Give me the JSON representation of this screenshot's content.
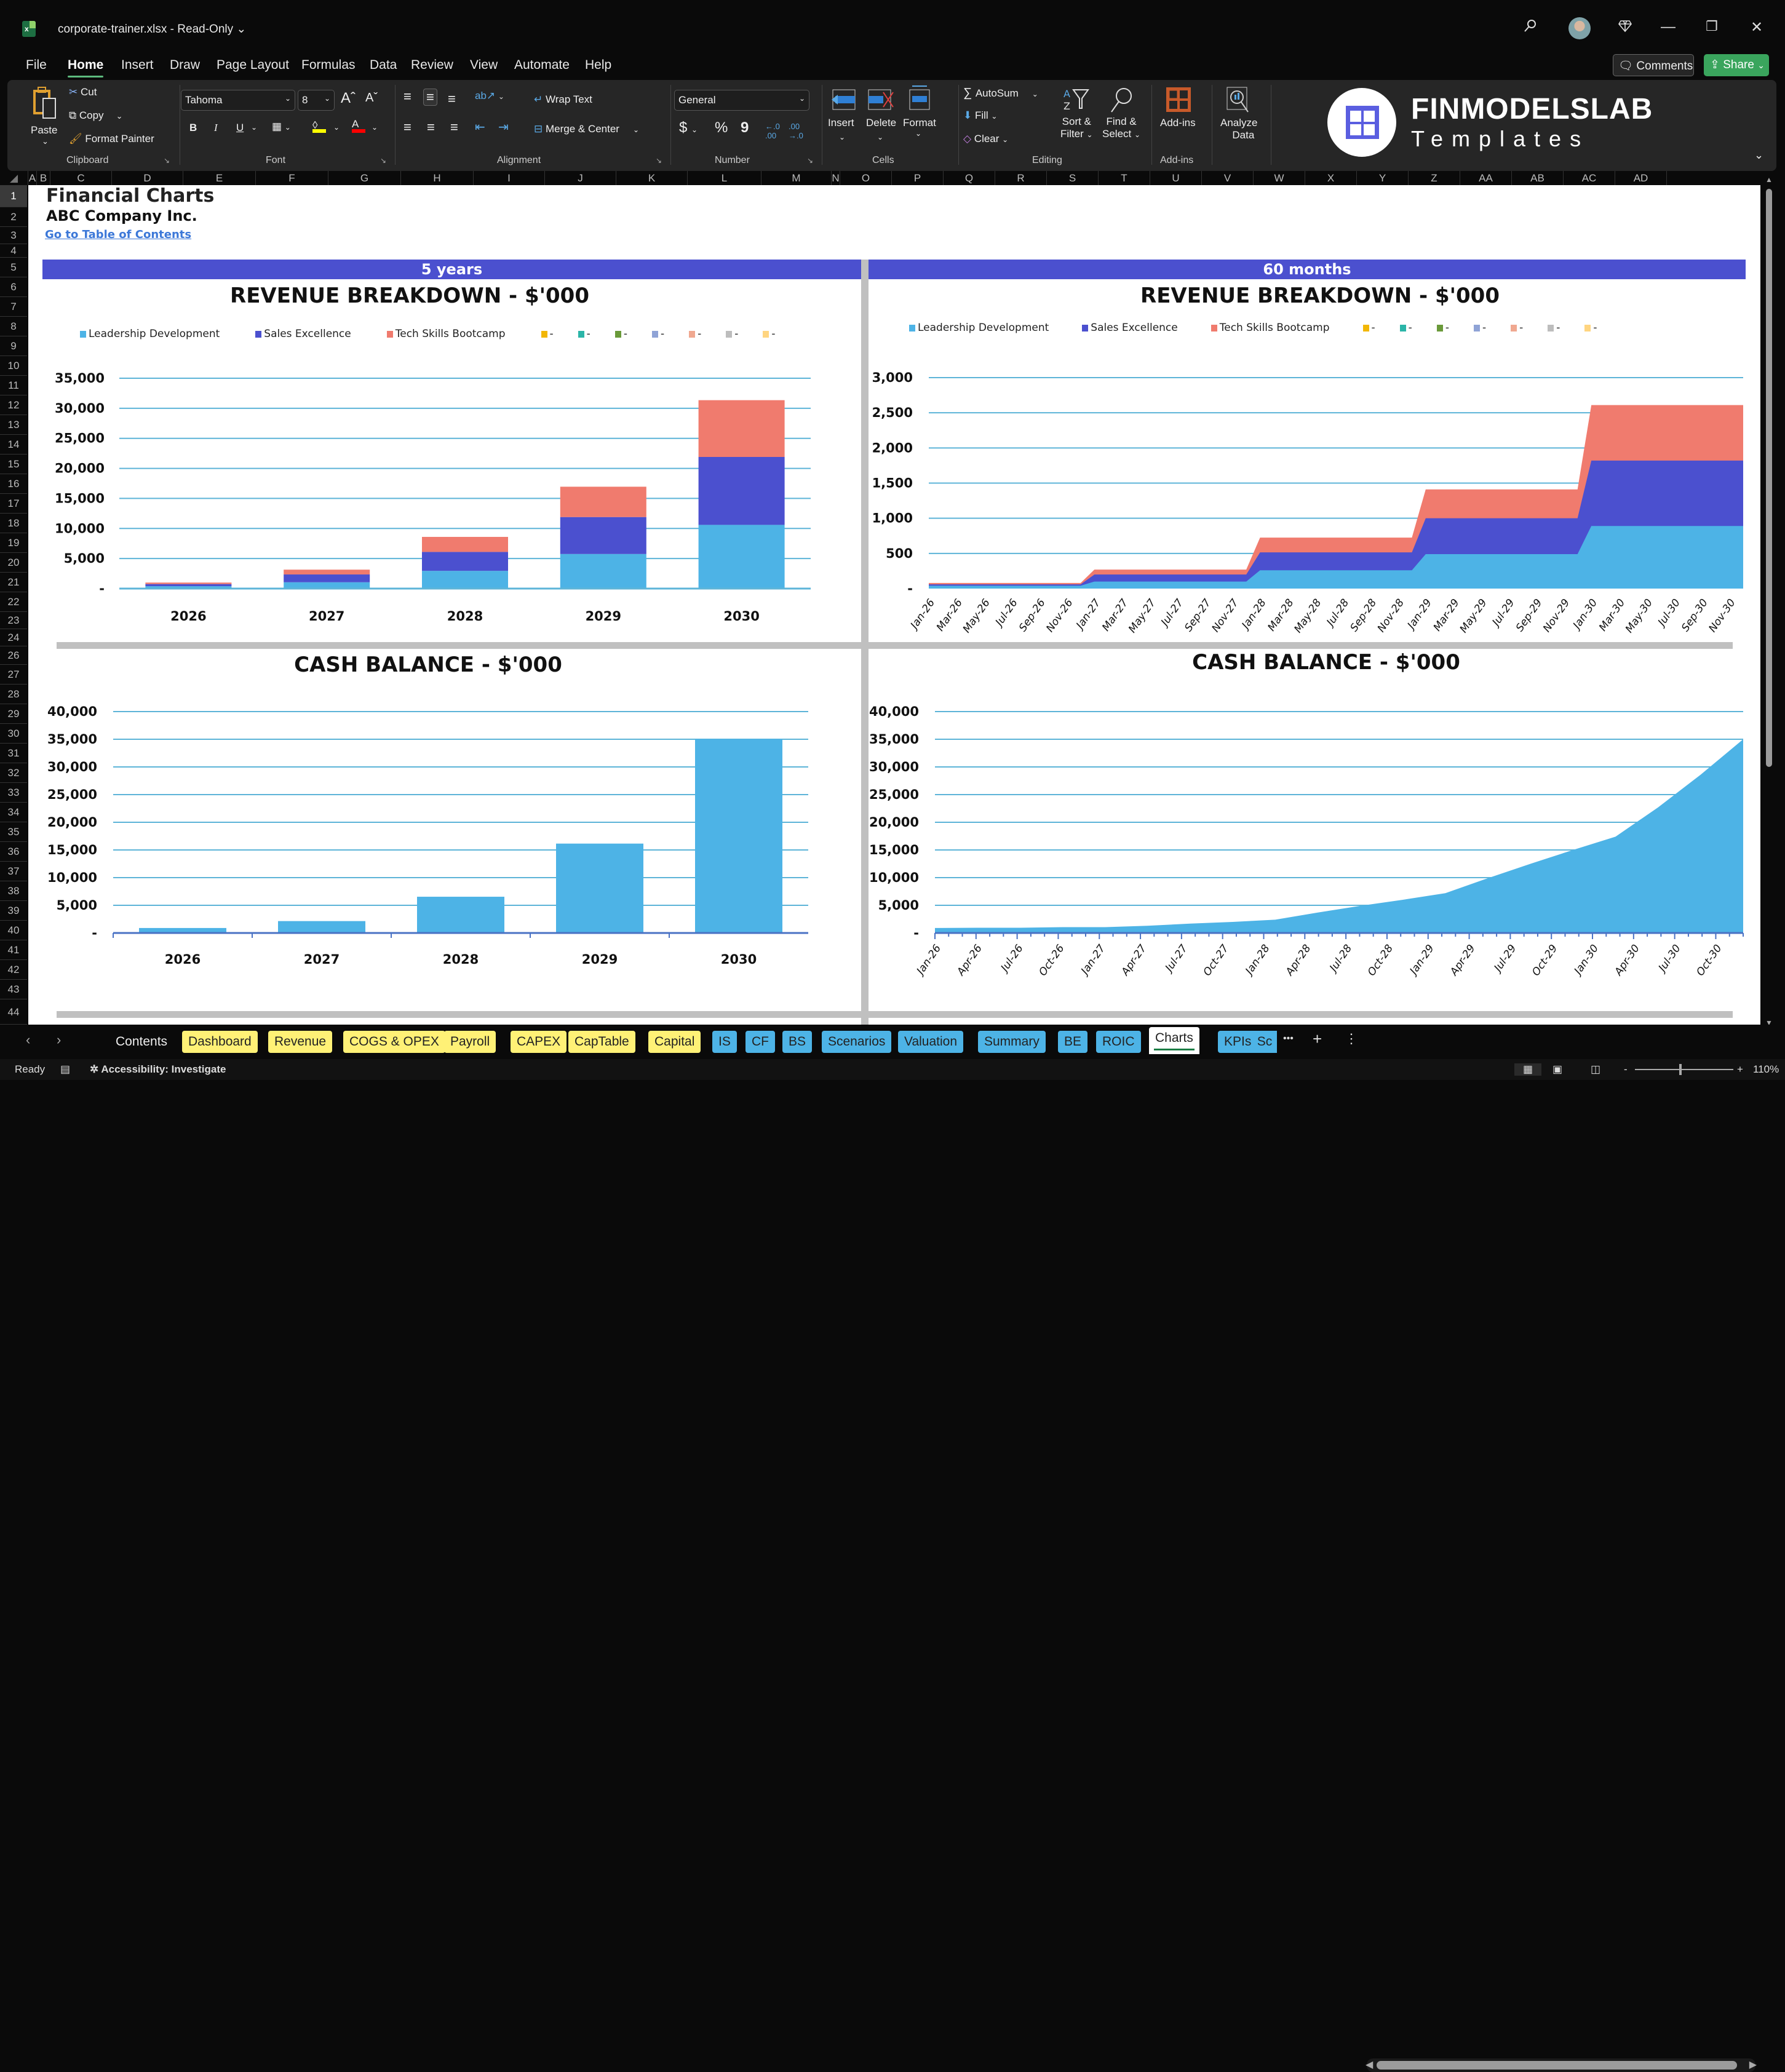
{
  "window": {
    "doc_title": "corporate-trainer.xlsx  -  Read-Only",
    "search_icon": "search-icon",
    "premium_icon": "diamond-icon",
    "minimize": "—",
    "restore": "❐",
    "close": "✕"
  },
  "menu": {
    "items": [
      "File",
      "Home",
      "Insert",
      "Draw",
      "Page Layout",
      "Formulas",
      "Data",
      "Review",
      "View",
      "Automate",
      "Help"
    ],
    "active": "Home",
    "comments_label": "Comments",
    "share_label": "Share"
  },
  "ribbon": {
    "clipboard": {
      "paste": "Paste",
      "cut": "Cut",
      "copy": "Copy",
      "format_painter": "Format Painter",
      "label": "Clipboard"
    },
    "font": {
      "name": "Tahoma",
      "size": "8",
      "bold": "B",
      "italic": "I",
      "underline": "U",
      "label": "Font",
      "fill_color": "#ffff00",
      "font_color": "#ff0000"
    },
    "alignment": {
      "wrap_text": "Wrap Text",
      "merge_center": "Merge & Center",
      "label": "Alignment"
    },
    "number": {
      "format": "General",
      "currency": "$",
      "percent": "%",
      "comma": "9",
      "label": "Number"
    },
    "cells": {
      "insert": "Insert",
      "delete": "Delete",
      "format": "Format",
      "label": "Cells"
    },
    "editing": {
      "autosum": "AutoSum",
      "fill": "Fill",
      "clear": "Clear",
      "sort_filter_1": "Sort &",
      "sort_filter_2": "Filter",
      "find_select_1": "Find &",
      "find_select_2": "Select",
      "label": "Editing"
    },
    "addins": {
      "addins": "Add-ins",
      "label": "Add-ins"
    },
    "analyze": {
      "line1": "Analyze",
      "line2": "Data"
    },
    "logo": {
      "name": "FINMODELSLAB",
      "sub": "Templates"
    }
  },
  "columns": [
    "A",
    "B",
    "C",
    "D",
    "E",
    "F",
    "G",
    "H",
    "I",
    "J",
    "K",
    "L",
    "M",
    "N",
    "O",
    "P",
    "Q",
    "R",
    "S",
    "T",
    "U",
    "V",
    "W",
    "X",
    "Y",
    "Z",
    "AA",
    "AB",
    "AC",
    "AD"
  ],
  "rows": [
    "1",
    "2",
    "3",
    "4",
    "5",
    "6",
    "7",
    "8",
    "9",
    "10",
    "11",
    "12",
    "13",
    "14",
    "15",
    "16",
    "17",
    "18",
    "19",
    "20",
    "21",
    "22",
    "23",
    "24",
    "26",
    "27",
    "28",
    "29",
    "30",
    "31",
    "32",
    "33",
    "34",
    "35",
    "36",
    "37",
    "38",
    "39",
    "40",
    "41",
    "42",
    "43",
    "44"
  ],
  "sheet": {
    "title": "Financial Charts",
    "company": "ABC Company Inc.",
    "toc_link": "Go to Table of Contents",
    "band_left": "5 years",
    "band_right": "60 months",
    "band_color": "#4b50cf"
  },
  "legend": {
    "items": [
      {
        "label": "Leadership Development",
        "color": "#4db3e6"
      },
      {
        "label": "Sales Excellence",
        "color": "#4b50cf"
      },
      {
        "label": "Tech Skills Bootcamp",
        "color": "#f07b6e"
      },
      {
        "label": "-",
        "color": "#f2b705"
      },
      {
        "label": "-",
        "color": "#2bb5a8"
      },
      {
        "label": "-",
        "color": "#6a9a3a"
      },
      {
        "label": "-",
        "color": "#8fa3d6"
      },
      {
        "label": "-",
        "color": "#f0a890"
      },
      {
        "label": "-",
        "color": "#bdbdbd"
      },
      {
        "label": "-",
        "color": "#ffd580"
      }
    ]
  },
  "chart_data": [
    {
      "type": "bar",
      "stacked": true,
      "title": "REVENUE BREAKDOWN - $'000",
      "categories": [
        "2026",
        "2027",
        "2028",
        "2029",
        "2030"
      ],
      "series": [
        {
          "name": "Leadership Development",
          "color": "#4db3e6",
          "values": [
            400,
            1050,
            2950,
            5750,
            10600
          ]
        },
        {
          "name": "Sales Excellence",
          "color": "#4b50cf",
          "values": [
            350,
            1300,
            3150,
            6150,
            11300
          ]
        },
        {
          "name": "Tech Skills Bootcamp",
          "color": "#f07b6e",
          "values": [
            250,
            800,
            2500,
            5050,
            9450
          ]
        }
      ],
      "yticks": [
        "-",
        "5,000",
        "10,000",
        "15,000",
        "20,000",
        "25,000",
        "30,000",
        "35,000"
      ],
      "ylim": [
        0,
        35000
      ],
      "grid": true,
      "legend_position": "top"
    },
    {
      "type": "area",
      "stacked": true,
      "title": "REVENUE BREAKDOWN - $'000",
      "x_start": "Jan-26",
      "x_end": "Dec-30",
      "xticks": [
        "Jan-26",
        "Mar-26",
        "May-26",
        "Jul-26",
        "Sep-26",
        "Nov-26",
        "Jan-27",
        "Mar-27",
        "May-27",
        "Jul-27",
        "Sep-27",
        "Nov-27",
        "Jan-28",
        "Mar-28",
        "May-28",
        "Jul-28",
        "Sep-28",
        "Nov-28",
        "Jan-29",
        "Mar-29",
        "May-29",
        "Jul-29",
        "Sep-29",
        "Nov-29",
        "Jan-30",
        "Mar-30",
        "May-30",
        "Jul-30",
        "Sep-30",
        "Nov-30"
      ],
      "series": [
        {
          "name": "Leadership Development",
          "color": "#4db3e6",
          "yearly_monthly_values": [
            40,
            100,
            260,
            490,
            890
          ]
        },
        {
          "name": "Sales Excellence",
          "color": "#4b50cf",
          "yearly_monthly_values": [
            20,
            100,
            255,
            510,
            930
          ]
        },
        {
          "name": "Tech Skills Bootcamp",
          "color": "#f07b6e",
          "yearly_monthly_values": [
            20,
            70,
            210,
            410,
            790
          ]
        }
      ],
      "yticks": [
        "-",
        "500",
        "1,000",
        "1,500",
        "2,000",
        "2,500",
        "3,000"
      ],
      "ylim": [
        0,
        3000
      ],
      "grid": true,
      "legend_position": "top"
    },
    {
      "type": "bar",
      "title": "CASH BALANCE - $'000",
      "categories": [
        "2026",
        "2027",
        "2028",
        "2029",
        "2030"
      ],
      "values": [
        900,
        2150,
        6550,
        16150,
        35050
      ],
      "color": "#4db3e6",
      "yticks": [
        "-",
        "5,000",
        "10,000",
        "15,000",
        "20,000",
        "25,000",
        "30,000",
        "35,000",
        "40,000"
      ],
      "ylim": [
        0,
        40000
      ],
      "grid": true
    },
    {
      "type": "area",
      "title": "CASH BALANCE - $'000",
      "xticks": [
        "Jan-26",
        "Apr-26",
        "Jul-26",
        "Oct-26",
        "Jan-27",
        "Apr-27",
        "Jul-27",
        "Oct-27",
        "Jan-28",
        "Apr-28",
        "Jul-28",
        "Oct-28",
        "Jan-29",
        "Apr-29",
        "Jul-29",
        "Oct-29",
        "Jan-30",
        "Apr-30",
        "Jul-30",
        "Oct-30"
      ],
      "values": [
        900,
        950,
        950,
        1050,
        1050,
        1300,
        1700,
        2000,
        2400,
        3700,
        4900,
        6000,
        7200,
        9900,
        12500,
        15000,
        17400,
        22700,
        28600,
        35000
      ],
      "color": "#4db3e6",
      "yticks": [
        "-",
        "5,000",
        "10,000",
        "15,000",
        "20,000",
        "25,000",
        "30,000",
        "35,000",
        "40,000"
      ],
      "ylim": [
        0,
        40000
      ],
      "grid": true
    }
  ],
  "tabs": {
    "items": [
      {
        "label": "Contents",
        "style": "plain"
      },
      {
        "label": "Dashboard",
        "style": "yellow"
      },
      {
        "label": "Revenue",
        "style": "yellow"
      },
      {
        "label": "COGS & OPEX",
        "style": "yellow"
      },
      {
        "label": "Payroll",
        "style": "yellow"
      },
      {
        "label": "CAPEX",
        "style": "yellow"
      },
      {
        "label": "CapTable",
        "style": "yellow"
      },
      {
        "label": "Capital",
        "style": "yellow"
      },
      {
        "label": "IS",
        "style": "blue"
      },
      {
        "label": "CF",
        "style": "blue"
      },
      {
        "label": "BS",
        "style": "blue"
      },
      {
        "label": "Scenarios",
        "style": "blue"
      },
      {
        "label": "Valuation",
        "style": "blue"
      },
      {
        "label": "Summary",
        "style": "blue"
      },
      {
        "label": "BE",
        "style": "blue"
      },
      {
        "label": "ROIC",
        "style": "blue"
      },
      {
        "label": "Charts",
        "style": "active"
      },
      {
        "label": "KPIs",
        "style": "blue"
      },
      {
        "label": "Sc",
        "style": "blue"
      }
    ],
    "more": "•••",
    "add": "+",
    "menu": "⋮"
  },
  "status": {
    "ready": "Ready",
    "accessibility": "Accessibility: Investigate",
    "zoom": "110%"
  }
}
